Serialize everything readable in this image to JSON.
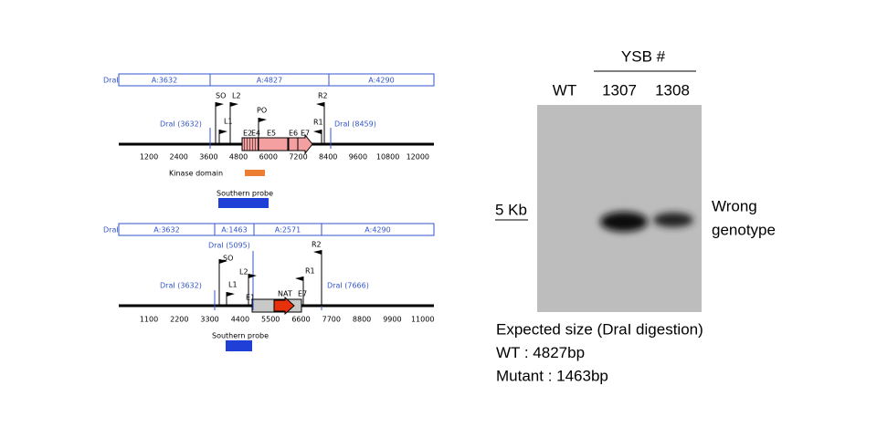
{
  "wt_map": {
    "enzyme": "DraI",
    "fragments": [
      "A:3632",
      "A:4827",
      "A:4290"
    ],
    "sites": [
      "DraI (3632)",
      "DraI (8459)"
    ],
    "primers": [
      "SO",
      "L2",
      "L1",
      "PO",
      "R2",
      "R1"
    ],
    "exons": [
      "E2",
      "E4",
      "E5",
      "E6",
      "E7"
    ],
    "ticks": [
      "1200",
      "2400",
      "3600",
      "4800",
      "6000",
      "7200",
      "8400",
      "9600",
      "10800",
      "12000"
    ],
    "kinase_label": "Kinase domain",
    "probe_label": "Southern probe"
  },
  "mutant_map": {
    "enzyme": "DraI",
    "fragments": [
      "A:3632",
      "A:1463",
      "A:2571",
      "A:4290"
    ],
    "sites": [
      "DraI (5095)",
      "DraI (3632)",
      "DraI (7666)"
    ],
    "primers": [
      "SO",
      "L2",
      "L1",
      "R2",
      "R1"
    ],
    "features": [
      "E1",
      "NAT",
      "E7"
    ],
    "ticks": [
      "1100",
      "2200",
      "3300",
      "4400",
      "5500",
      "6600",
      "7700",
      "8800",
      "9900",
      "11000"
    ],
    "probe_label": "Southern probe"
  },
  "blot": {
    "group": "YSB #",
    "lanes": [
      "WT",
      "1307",
      "1308"
    ],
    "marker": "5 Kb",
    "note": [
      "Wrong",
      "genotype"
    ]
  },
  "caption": [
    "Expected size (DraI digestion)",
    "WT : 4827bp",
    "Mutant : 1463bp"
  ]
}
